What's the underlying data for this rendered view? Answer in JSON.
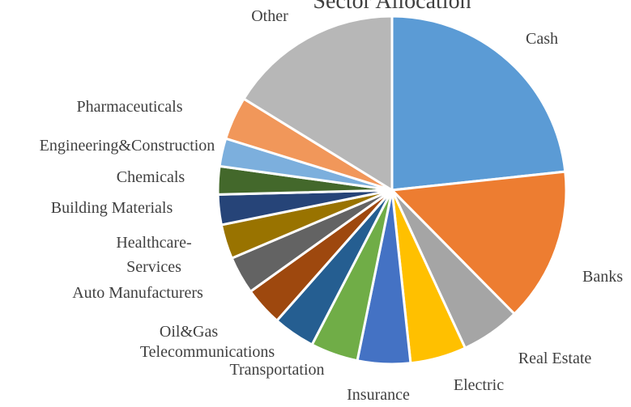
{
  "chart_data": {
    "type": "pie",
    "title": "Sector Allocation",
    "categories": [
      "Cash",
      "Banks",
      "Real Estate",
      "Electric",
      "Insurance",
      "Transportation",
      "Telecommunications",
      "Oil&Gas",
      "Auto Manufacturers",
      "Healthcare-Services",
      "Building Materials",
      "Chemicals",
      "Engineering&Construction",
      "Pharmaceuticals",
      "Other"
    ],
    "values": [
      23.3,
      14.3,
      5.5,
      5.2,
      4.9,
      4.4,
      3.9,
      3.6,
      3.5,
      3.2,
      2.8,
      2.6,
      2.6,
      4.0,
      16.2
    ],
    "colors": [
      "#5b9bd5",
      "#ed7d31",
      "#a5a5a5",
      "#ffc000",
      "#4472c4",
      "#70ad47",
      "#255e91",
      "#9e480e",
      "#636363",
      "#997300",
      "#264478",
      "#43682b",
      "#7cafdd",
      "#f1975a",
      "#b7b7b7"
    ]
  }
}
